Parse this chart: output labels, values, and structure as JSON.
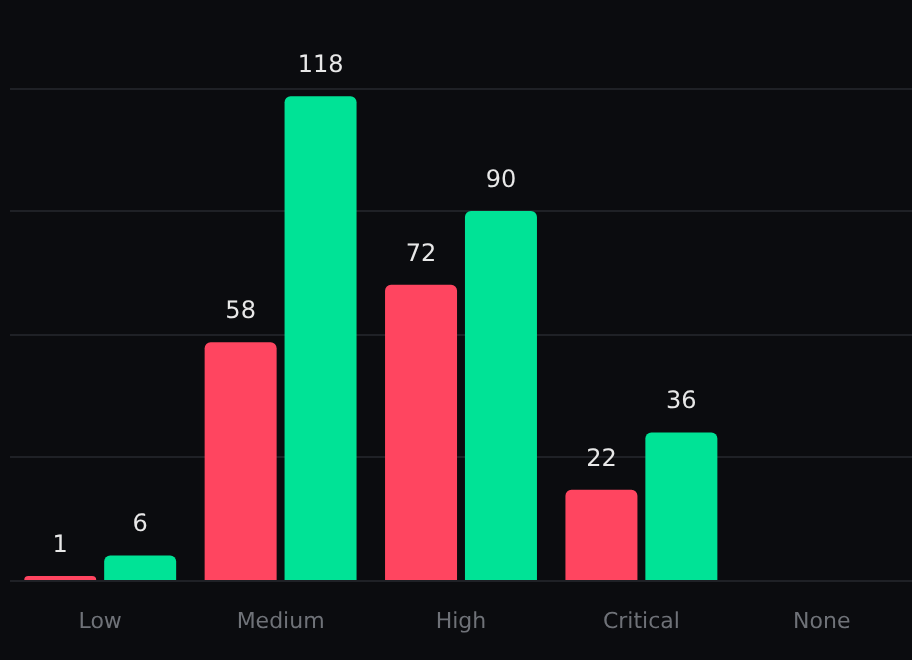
{
  "chart_data": {
    "type": "bar",
    "categories": [
      "Low",
      "Medium",
      "High",
      "Critical",
      "None"
    ],
    "series": [
      {
        "color": "#ff4560",
        "values": [
          1,
          58,
          72,
          22,
          null
        ]
      },
      {
        "color": "#00e396",
        "values": [
          6,
          118,
          90,
          36,
          null
        ]
      }
    ],
    "ylim": [
      0,
      120
    ],
    "yticks": [
      0,
      {
        "value": 30,
        "label": null
      },
      {
        "value": 60,
        "label": null
      },
      {
        "value": 90,
        "label": null
      },
      {
        "value": 120,
        "label": null
      }
    ],
    "tick_labels": "x",
    "grid": "y",
    "data_labels": true
  }
}
